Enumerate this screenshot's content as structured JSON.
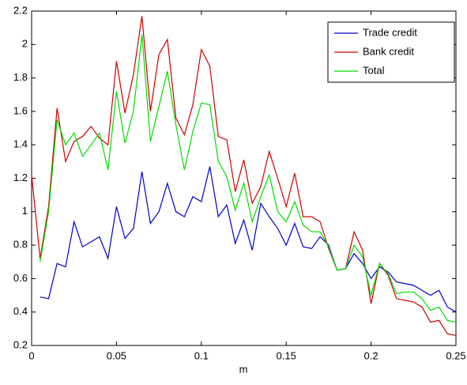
{
  "chart_data": {
    "type": "line",
    "xlabel": "m",
    "x": [
      0,
      0.005,
      0.01,
      0.015,
      0.02,
      0.025,
      0.03,
      0.035,
      0.04,
      0.045,
      0.05,
      0.055,
      0.06,
      0.065,
      0.07,
      0.075,
      0.08,
      0.085,
      0.09,
      0.095,
      0.1,
      0.105,
      0.11,
      0.115,
      0.12,
      0.125,
      0.13,
      0.135,
      0.14,
      0.145,
      0.15,
      0.155,
      0.16,
      0.165,
      0.17,
      0.175,
      0.18,
      0.185,
      0.19,
      0.195,
      0.2,
      0.205,
      0.21,
      0.215,
      0.22,
      0.225,
      0.23,
      0.235,
      0.24,
      0.245,
      0.25
    ],
    "series": [
      {
        "name": "Trade credit",
        "color": "#0000cc",
        "values": [
          null,
          0.49,
          0.48,
          0.69,
          0.67,
          0.94,
          0.79,
          0.82,
          0.85,
          0.72,
          1.03,
          0.84,
          0.9,
          1.24,
          0.93,
          1.0,
          1.17,
          1.0,
          0.97,
          1.09,
          1.06,
          1.27,
          0.97,
          1.04,
          0.81,
          0.95,
          0.77,
          1.05,
          0.97,
          0.9,
          0.8,
          0.93,
          0.79,
          0.78,
          0.85,
          0.8,
          0.65,
          0.66,
          0.75,
          0.69,
          0.6,
          0.67,
          0.64,
          0.58,
          0.57,
          0.56,
          0.53,
          0.5,
          0.53,
          0.43,
          0.4
        ]
      },
      {
        "name": "Bank credit",
        "color": "#cc0000",
        "values": [
          1.22,
          0.72,
          1.03,
          1.62,
          1.3,
          1.42,
          1.45,
          1.51,
          1.44,
          1.4,
          1.9,
          1.59,
          1.82,
          2.17,
          1.6,
          1.94,
          2.03,
          1.56,
          1.46,
          1.64,
          1.97,
          1.87,
          1.45,
          1.43,
          1.12,
          1.31,
          1.05,
          1.15,
          1.36,
          1.2,
          1.03,
          1.23,
          0.97,
          0.97,
          0.94,
          0.78,
          0.65,
          0.66,
          0.88,
          0.77,
          0.45,
          0.69,
          0.62,
          0.48,
          0.47,
          0.46,
          0.43,
          0.34,
          0.35,
          0.27,
          0.26
        ]
      },
      {
        "name": "Total",
        "color": "#00dd00",
        "values": [
          null,
          0.7,
          1.0,
          1.55,
          1.4,
          1.47,
          1.33,
          1.4,
          1.47,
          1.25,
          1.72,
          1.41,
          1.6,
          2.06,
          1.42,
          1.63,
          1.84,
          1.52,
          1.25,
          1.48,
          1.65,
          1.64,
          1.3,
          1.21,
          1.01,
          1.17,
          0.94,
          1.09,
          1.22,
          1.0,
          0.94,
          1.06,
          0.92,
          0.88,
          0.88,
          0.79,
          0.65,
          0.66,
          0.8,
          0.73,
          0.5,
          0.69,
          0.63,
          0.51,
          0.52,
          0.52,
          0.48,
          0.41,
          0.43,
          0.35,
          0.34
        ]
      }
    ],
    "xlim": [
      0,
      0.25
    ],
    "xticks": [
      0,
      0.05,
      0.1,
      0.15,
      0.2,
      0.25
    ],
    "ylim": [
      0.2,
      2.2
    ],
    "yticks": [
      0.2,
      0.4,
      0.6,
      0.8,
      1,
      1.2,
      1.4,
      1.6,
      1.8,
      2,
      2.2
    ],
    "legend": "upper right"
  }
}
